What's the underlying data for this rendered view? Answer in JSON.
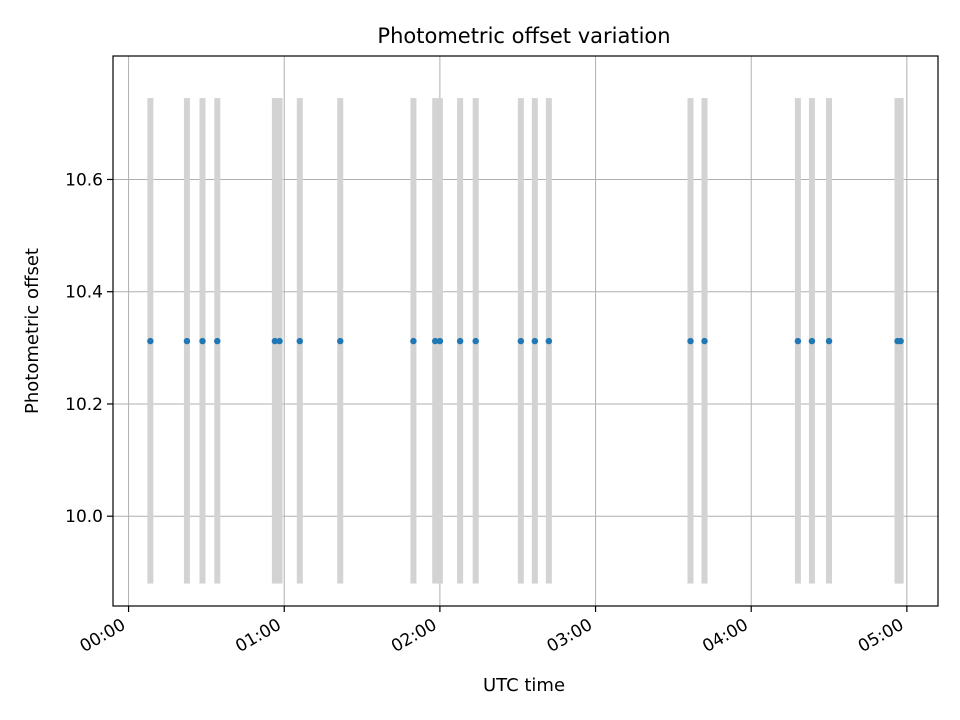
{
  "chart_data": {
    "type": "scatter",
    "title": "Photometric offset variation",
    "xlabel": "UTC time",
    "ylabel": "Photometric offset",
    "x_unit": "hours UTC",
    "xlim": [
      -0.1,
      5.2
    ],
    "ylim": [
      9.84,
      10.82
    ],
    "x_ticks": [
      0,
      1,
      2,
      3,
      4,
      5
    ],
    "x_tick_labels": [
      "00:00",
      "01:00",
      "02:00",
      "03:00",
      "04:00",
      "05:00"
    ],
    "y_ticks": [
      10.0,
      10.2,
      10.4,
      10.6
    ],
    "y_tick_labels": [
      "10.0",
      "10.2",
      "10.4",
      "10.6"
    ],
    "grid": true,
    "span_range": [
      9.88,
      10.745
    ],
    "span_color": "#d3d3d3",
    "point_color": "#1f77b4",
    "series": [
      {
        "x": [
          0.14,
          0.375,
          0.475,
          0.57,
          0.94,
          0.97,
          1.1,
          1.36,
          1.83,
          1.97,
          2.0,
          2.13,
          2.23,
          2.52,
          2.61,
          2.7,
          3.61,
          3.7,
          4.3,
          4.39,
          4.5,
          4.94,
          4.96
        ],
        "y": [
          10.312,
          10.312,
          10.312,
          10.312,
          10.312,
          10.312,
          10.312,
          10.312,
          10.312,
          10.312,
          10.312,
          10.312,
          10.312,
          10.312,
          10.312,
          10.312,
          10.312,
          10.312,
          10.312,
          10.312,
          10.312,
          10.312,
          10.312
        ]
      }
    ]
  }
}
